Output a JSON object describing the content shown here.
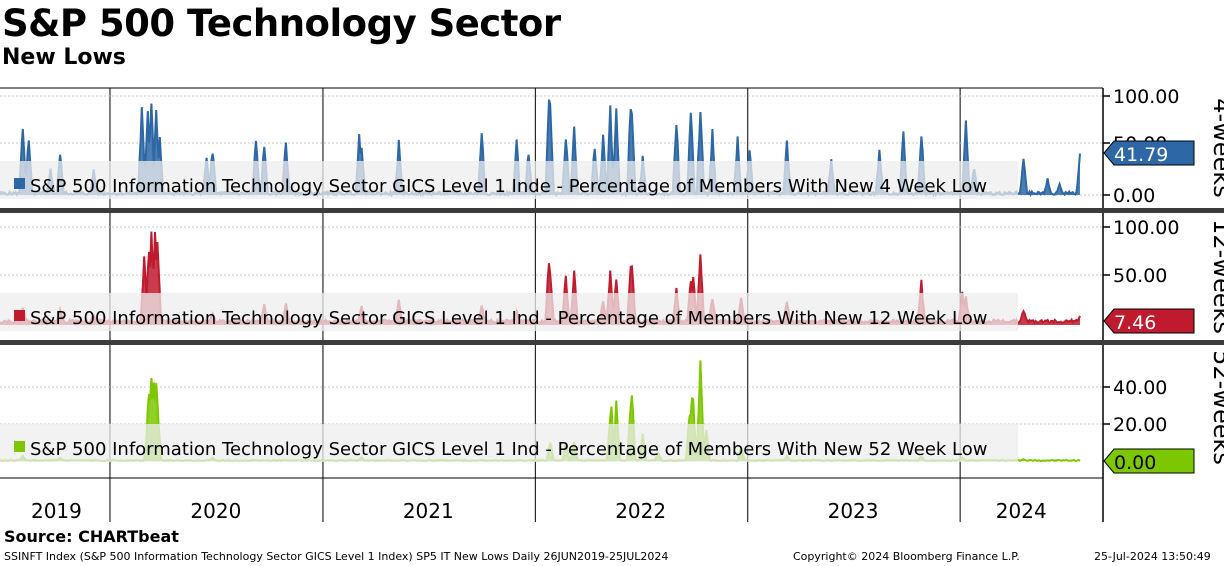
{
  "title": "S&P 500 Technology Sector",
  "subtitle": "New Lows",
  "source": "Source: CHARTbeat",
  "footer": {
    "left": "SSINFT Index (S&P 500 Information Technology Sector GICS Level 1 Index) SP5 IT New Lows  Daily 26JUN2019-25JUL2024",
    "copyright": "Copyright© 2024 Bloomberg Finance L.P.",
    "timestamp": "25-Jul-2024 13:50:49"
  },
  "chart_data": {
    "type": "area",
    "x_range": [
      "2019-06-26",
      "2024-07-25"
    ],
    "x_tick_labels": [
      "2019",
      "2020",
      "2021",
      "2022",
      "2023",
      "2024"
    ],
    "panels": [
      {
        "side_label": "4-weeks",
        "legend": "S&P 500 Information Technology Sector GICS Level 1 Inde - Percentage of Members With New 4 Week Low",
        "color": "#2e67a5",
        "light_color": "#8fb0d4",
        "last_value_label": "41.79",
        "y_ticks": [
          "100.00",
          "50.00",
          "0.00"
        ],
        "ylim": [
          0,
          103
        ],
        "peaks": [
          [
            "2019-08-05",
            78
          ],
          [
            "2019-08-15",
            65
          ],
          [
            "2019-09-20",
            30
          ],
          [
            "2019-10-08",
            48
          ],
          [
            "2019-12-05",
            26
          ],
          [
            "2020-02-25",
            100
          ],
          [
            "2020-03-05",
            95
          ],
          [
            "2020-03-12",
            99
          ],
          [
            "2020-03-20",
            92
          ],
          [
            "2020-03-26",
            60
          ],
          [
            "2020-06-15",
            45
          ],
          [
            "2020-06-26",
            52
          ],
          [
            "2020-09-08",
            62
          ],
          [
            "2020-09-23",
            55
          ],
          [
            "2020-10-30",
            60
          ],
          [
            "2021-03-04",
            62
          ],
          [
            "2021-03-08",
            55
          ],
          [
            "2021-05-12",
            58
          ],
          [
            "2021-09-30",
            70
          ],
          [
            "2021-11-30",
            58
          ],
          [
            "2021-12-20",
            50
          ],
          [
            "2022-01-24",
            100
          ],
          [
            "2022-01-27",
            95
          ],
          [
            "2022-02-23",
            68
          ],
          [
            "2022-03-08",
            70
          ],
          [
            "2022-04-12",
            55
          ],
          [
            "2022-04-28",
            62
          ],
          [
            "2022-05-09",
            95
          ],
          [
            "2022-05-20",
            88
          ],
          [
            "2022-06-14",
            100
          ],
          [
            "2022-06-16",
            98
          ],
          [
            "2022-07-05",
            40
          ],
          [
            "2022-09-01",
            82
          ],
          [
            "2022-09-26",
            100
          ],
          [
            "2022-10-12",
            102
          ],
          [
            "2022-11-02",
            70
          ],
          [
            "2022-12-15",
            65
          ],
          [
            "2023-01-05",
            52
          ],
          [
            "2023-03-10",
            60
          ],
          [
            "2023-05-24",
            42
          ],
          [
            "2023-08-15",
            50
          ],
          [
            "2023-09-25",
            68
          ],
          [
            "2023-10-26",
            68
          ],
          [
            "2024-01-10",
            80
          ],
          [
            "2024-01-25",
            32
          ],
          [
            "2024-04-19",
            40
          ],
          [
            "2024-05-30",
            18
          ],
          [
            "2024-06-20",
            12
          ],
          [
            "2024-07-24",
            41.79
          ]
        ]
      },
      {
        "side_label": "12-weeks",
        "legend": "S&P 500 Information Technology Sector GICS Level 1 Ind - Percentage of Members With New 12 Week Low",
        "color": "#c01a2e",
        "light_color": "#e28792",
        "last_value_label": "7.46",
        "y_ticks": [
          "100.00",
          "50.00"
        ],
        "ylim": [
          0,
          105
        ],
        "peaks": [
          [
            "2019-08-05",
            18
          ],
          [
            "2019-10-08",
            15
          ],
          [
            "2019-12-05",
            10
          ],
          [
            "2020-02-28",
            75
          ],
          [
            "2020-03-09",
            90
          ],
          [
            "2020-03-12",
            100
          ],
          [
            "2020-03-18",
            98
          ],
          [
            "2020-03-23",
            95
          ],
          [
            "2020-06-26",
            12
          ],
          [
            "2020-09-23",
            20
          ],
          [
            "2020-10-30",
            22
          ],
          [
            "2021-03-08",
            18
          ],
          [
            "2021-05-12",
            25
          ],
          [
            "2021-09-30",
            20
          ],
          [
            "2021-11-30",
            15
          ],
          [
            "2022-01-24",
            70
          ],
          [
            "2022-01-27",
            60
          ],
          [
            "2022-02-23",
            52
          ],
          [
            "2022-03-08",
            58
          ],
          [
            "2022-04-28",
            25
          ],
          [
            "2022-05-09",
            60
          ],
          [
            "2022-05-20",
            50
          ],
          [
            "2022-06-14",
            68
          ],
          [
            "2022-06-16",
            65
          ],
          [
            "2022-09-01",
            38
          ],
          [
            "2022-09-26",
            48
          ],
          [
            "2022-09-30",
            52
          ],
          [
            "2022-10-12",
            80
          ],
          [
            "2022-11-02",
            30
          ],
          [
            "2022-12-20",
            28
          ],
          [
            "2023-03-10",
            25
          ],
          [
            "2023-10-26",
            45
          ],
          [
            "2024-01-05",
            35
          ],
          [
            "2024-01-10",
            30
          ],
          [
            "2024-04-19",
            15
          ],
          [
            "2024-07-24",
            7.46
          ]
        ]
      },
      {
        "side_label": "52-weeks",
        "legend": "S&P 500 Information Technology Sector GICS Level 1 Ind - Percentage of Members With New 52 Week Low",
        "color": "#7dc700",
        "light_color": "#b9e07a",
        "last_value_label": "0.00",
        "y_ticks": [
          "40.00",
          "20.00"
        ],
        "ylim": [
          0,
          58
        ],
        "peaks": [
          [
            "2019-08-05",
            3
          ],
          [
            "2019-10-08",
            2
          ],
          [
            "2020-03-05",
            20
          ],
          [
            "2020-03-09",
            45
          ],
          [
            "2020-03-12",
            53
          ],
          [
            "2020-03-16",
            52
          ],
          [
            "2020-03-20",
            50
          ],
          [
            "2020-03-23",
            35
          ],
          [
            "2020-06-26",
            2
          ],
          [
            "2021-03-08",
            2
          ],
          [
            "2022-01-27",
            12
          ],
          [
            "2022-02-23",
            10
          ],
          [
            "2022-03-08",
            12
          ],
          [
            "2022-05-09",
            25
          ],
          [
            "2022-05-12",
            30
          ],
          [
            "2022-05-20",
            33
          ],
          [
            "2022-06-14",
            35
          ],
          [
            "2022-06-16",
            38
          ],
          [
            "2022-07-05",
            15
          ],
          [
            "2022-08-01",
            5
          ],
          [
            "2022-09-23",
            30
          ],
          [
            "2022-09-27",
            40
          ],
          [
            "2022-09-30",
            35
          ],
          [
            "2022-10-12",
            55
          ],
          [
            "2022-10-21",
            18
          ],
          [
            "2022-12-20",
            8
          ],
          [
            "2023-03-10",
            3
          ],
          [
            "2023-10-26",
            3
          ],
          [
            "2024-01-05",
            2
          ],
          [
            "2024-04-19",
            1
          ],
          [
            "2024-07-24",
            0
          ]
        ]
      }
    ]
  }
}
